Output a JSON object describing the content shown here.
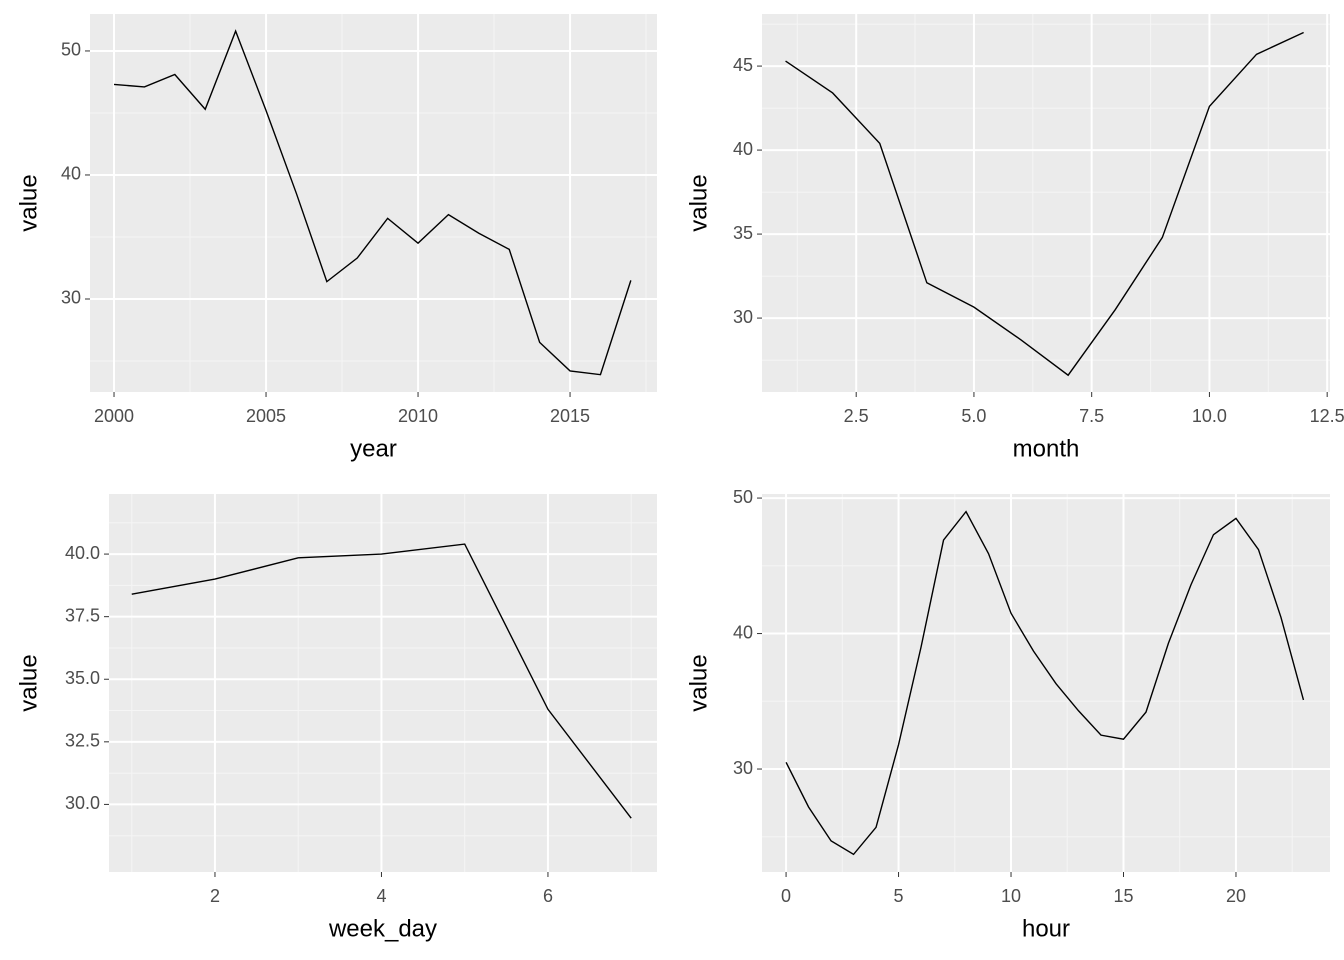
{
  "chart_data": [
    {
      "type": "line",
      "x_label": "year",
      "y_label": "value",
      "color": "#000000",
      "grid": true,
      "x": [
        2000,
        2001,
        2002,
        2003,
        2004,
        2005,
        2006,
        2007,
        2008,
        2009,
        2010,
        2011,
        2012,
        2013,
        2014,
        2015,
        2016,
        2017
      ],
      "values": [
        47.3,
        47.1,
        48.1,
        45.3,
        51.6,
        45.2,
        38.5,
        31.4,
        33.3,
        36.5,
        34.5,
        36.8,
        35.3,
        34.0,
        26.5,
        24.2,
        23.9,
        31.5
      ],
      "xlim": [
        1999.21,
        2017.86
      ],
      "ylim": [
        22.5,
        52.98
      ],
      "xticks": [
        2000,
        2005,
        2010,
        2015
      ],
      "yticks": [
        30,
        40,
        50
      ]
    },
    {
      "type": "line",
      "x_label": "month",
      "y_label": "value",
      "color": "#000000",
      "grid": true,
      "x": [
        1,
        2,
        3,
        4,
        5,
        6,
        7,
        8,
        9,
        10,
        11,
        12
      ],
      "values": [
        45.3,
        43.4,
        40.4,
        32.1,
        30.65,
        28.7,
        26.6,
        30.5,
        34.8,
        42.6,
        45.7,
        47.0
      ],
      "xlim": [
        0.5,
        12.56
      ],
      "ylim": [
        25.6,
        48.1
      ],
      "xticks": [
        {
          "value": 2.5,
          "label": "2.5"
        },
        {
          "value": 5,
          "label": "5.0"
        },
        {
          "value": 7.5,
          "label": "7.5"
        },
        {
          "value": 10,
          "label": "10.0"
        },
        {
          "value": 12.5,
          "label": "12.5"
        }
      ],
      "yticks": [
        30,
        35,
        40,
        45
      ]
    },
    {
      "type": "line",
      "x_label": "week_day",
      "y_label": "value",
      "color": "#000000",
      "grid": true,
      "x": [
        1,
        2,
        3,
        4,
        5,
        6,
        7
      ],
      "values": [
        38.4,
        39.0,
        39.85,
        40.0,
        40.4,
        33.8,
        29.45
      ],
      "xlim": [
        0.727,
        7.31
      ],
      "ylim": [
        27.3,
        42.4
      ],
      "xticks": [
        2,
        4,
        6
      ],
      "yticks": [
        {
          "value": 30,
          "label": "30.0"
        },
        {
          "value": 32.5,
          "label": "32.5"
        },
        {
          "value": 35,
          "label": "35.0"
        },
        {
          "value": 37.5,
          "label": "37.5"
        },
        {
          "value": 40,
          "label": "40.0"
        }
      ]
    },
    {
      "type": "line",
      "x_label": "hour",
      "y_label": "value",
      "color": "#000000",
      "grid": true,
      "x": [
        0,
        1,
        2,
        3,
        4,
        5,
        6,
        7,
        8,
        9,
        10,
        11,
        12,
        13,
        14,
        15,
        16,
        17,
        18,
        19,
        20,
        21,
        22,
        23
      ],
      "values": [
        30.5,
        27.2,
        24.7,
        23.7,
        25.7,
        31.8,
        39.0,
        46.9,
        49.0,
        45.9,
        41.5,
        38.7,
        36.3,
        34.3,
        32.5,
        32.2,
        34.2,
        39.3,
        43.6,
        47.3,
        48.5,
        46.2,
        41.2,
        35.1
      ],
      "xlim": [
        -1.07,
        24.18
      ],
      "ylim": [
        22.4,
        50.3
      ],
      "xticks": [
        0,
        5,
        10,
        15,
        20
      ],
      "yticks": [
        30,
        40,
        50
      ]
    }
  ]
}
